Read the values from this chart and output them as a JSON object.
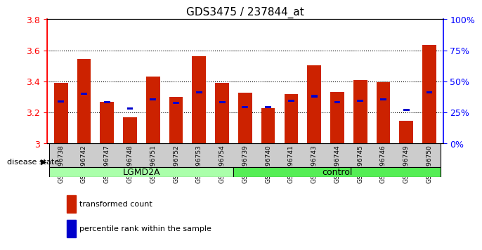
{
  "title": "GDS3475 / 237844_at",
  "samples": [
    "GSM296738",
    "GSM296742",
    "GSM296747",
    "GSM296748",
    "GSM296751",
    "GSM296752",
    "GSM296753",
    "GSM296754",
    "GSM296739",
    "GSM296740",
    "GSM296741",
    "GSM296743",
    "GSM296744",
    "GSM296745",
    "GSM296746",
    "GSM296749",
    "GSM296750"
  ],
  "red_values": [
    3.39,
    3.545,
    3.27,
    3.17,
    3.43,
    3.3,
    3.56,
    3.39,
    3.325,
    3.23,
    3.32,
    3.505,
    3.33,
    3.41,
    3.395,
    3.145,
    3.635
  ],
  "blue_values": [
    3.27,
    3.32,
    3.265,
    3.225,
    3.285,
    3.26,
    3.33,
    3.265,
    3.235,
    3.235,
    3.275,
    3.305,
    3.265,
    3.275,
    3.285,
    3.215,
    3.33
  ],
  "ylim": [
    3.0,
    3.8
  ],
  "yticks": [
    3.0,
    3.2,
    3.4,
    3.6,
    3.8
  ],
  "yticks_right": [
    0,
    25,
    50,
    75,
    100
  ],
  "bar_color": "#CC2200",
  "blue_color": "#0000CC",
  "bar_width": 0.6,
  "lgmd2a_count": 8,
  "control_count": 9,
  "lgmd2a_color": "#AAFFAA",
  "control_color": "#55EE55",
  "xlabel_area_color": "#CCCCCC",
  "legend_red": "transformed count",
  "legend_blue": "percentile rank within the sample",
  "disease_state_label": "disease state",
  "group1_label": "LGMD2A",
  "group2_label": "control"
}
